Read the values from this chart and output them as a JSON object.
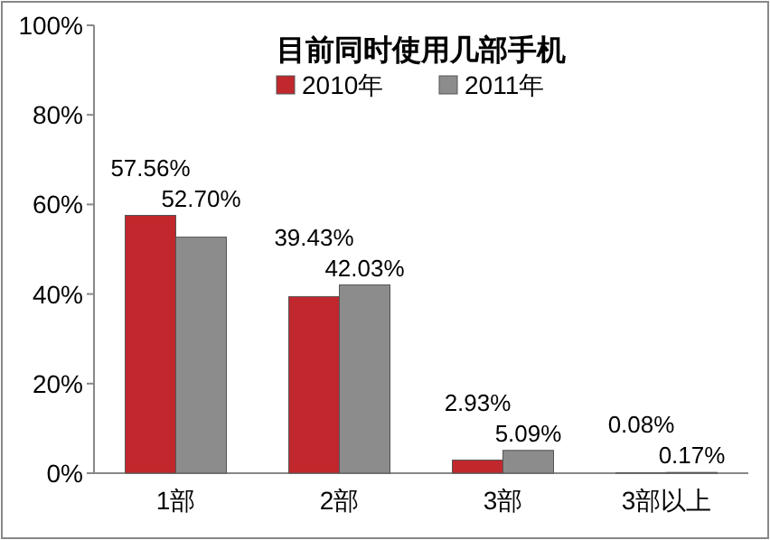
{
  "chart_data": {
    "type": "bar",
    "title": "目前同时使用几部手机",
    "categories": [
      "1部",
      "2部",
      "3部",
      "3部以上"
    ],
    "series": [
      {
        "name": "2010年",
        "color": "#c0282d",
        "values": [
          57.56,
          39.43,
          2.93,
          0.08
        ],
        "value_labels": [
          "57.56%",
          "39.43%",
          "2.93%",
          "0.08%"
        ]
      },
      {
        "name": "2011年",
        "color": "#8c8c8c",
        "values": [
          52.7,
          42.03,
          5.09,
          0.17
        ],
        "value_labels": [
          "52.70%",
          "42.03%",
          "5.09%",
          "0.17%"
        ]
      }
    ],
    "ylim": [
      0,
      100
    ],
    "yticks": [
      {
        "value": 0,
        "label": "0%"
      },
      {
        "value": 20,
        "label": "20%"
      },
      {
        "value": 40,
        "label": "40%"
      },
      {
        "value": 60,
        "label": "60%"
      },
      {
        "value": 80,
        "label": "80%"
      },
      {
        "value": 100,
        "label": "100%"
      }
    ],
    "grid": false,
    "legend": "top"
  }
}
